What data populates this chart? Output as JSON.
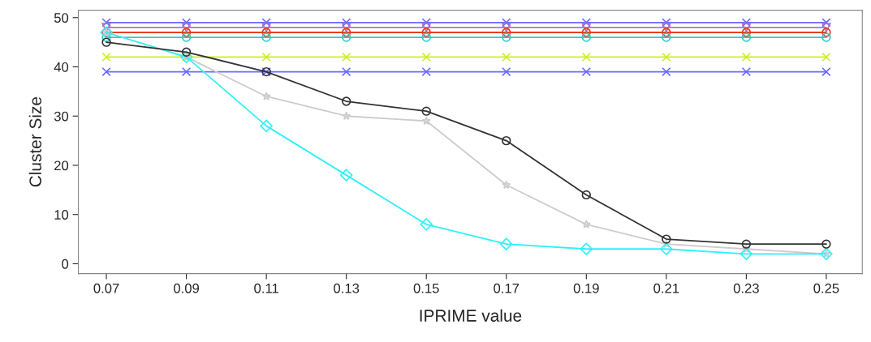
{
  "chart_data": {
    "type": "line",
    "xlabel": "IPRIME value",
    "ylabel": "Cluster Size",
    "x": [
      0.07,
      0.09,
      0.11,
      0.13,
      0.15,
      0.17,
      0.19,
      0.21,
      0.23,
      0.25
    ],
    "xlim": [
      0.063,
      0.259
    ],
    "ylim": [
      -2,
      51.5
    ],
    "xticks": [
      {
        "value": 0.07,
        "label": "0.07"
      },
      {
        "value": 0.09,
        "label": "0.09"
      },
      {
        "value": 0.11,
        "label": "0.11"
      },
      {
        "value": 0.13,
        "label": "0.13"
      },
      {
        "value": 0.15,
        "label": "0.15"
      },
      {
        "value": 0.17,
        "label": "0.17"
      },
      {
        "value": 0.19,
        "label": "0.19"
      },
      {
        "value": 0.21,
        "label": "0.21"
      },
      {
        "value": 0.23,
        "label": "0.23"
      },
      {
        "value": 0.25,
        "label": "0.25"
      }
    ],
    "yticks": [
      0,
      10,
      20,
      30,
      40,
      50
    ],
    "grid": false,
    "legend": false,
    "series": [
      {
        "color": "#6a6aff",
        "marker": "cross",
        "values": [
          49,
          49,
          49,
          49,
          49,
          49,
          49,
          49,
          49,
          49
        ]
      },
      {
        "color": "#b070c0",
        "marker": "triangle",
        "values": [
          48,
          48,
          48,
          48,
          48,
          48,
          48,
          48,
          48,
          48
        ]
      },
      {
        "color": "#e84020",
        "marker": "circle",
        "values": [
          47,
          47,
          47,
          47,
          47,
          47,
          47,
          47,
          47,
          47
        ]
      },
      {
        "color": "#30c8c8",
        "marker": "circle",
        "values": [
          46,
          46,
          46,
          46,
          46,
          46,
          46,
          46,
          46,
          46
        ]
      },
      {
        "color": "#ccee22",
        "marker": "cross",
        "values": [
          42,
          42,
          42,
          42,
          42,
          42,
          42,
          42,
          42,
          42
        ]
      },
      {
        "color": "#6a6aff",
        "marker": "cross",
        "values": [
          39,
          39,
          39,
          39,
          39,
          39,
          39,
          39,
          39,
          39
        ]
      },
      {
        "color": "#cccccc",
        "marker": "star",
        "values": [
          47,
          42,
          34,
          30,
          29,
          16,
          8,
          4,
          3,
          2
        ]
      },
      {
        "color": "#30f0f8",
        "marker": "diamond",
        "values": [
          47,
          42,
          28,
          18,
          8,
          4,
          3,
          3,
          2,
          2
        ]
      },
      {
        "color": "#333333",
        "marker": "circle",
        "values": [
          45,
          43,
          39,
          33,
          31,
          25,
          14,
          5,
          4,
          4
        ]
      }
    ]
  }
}
